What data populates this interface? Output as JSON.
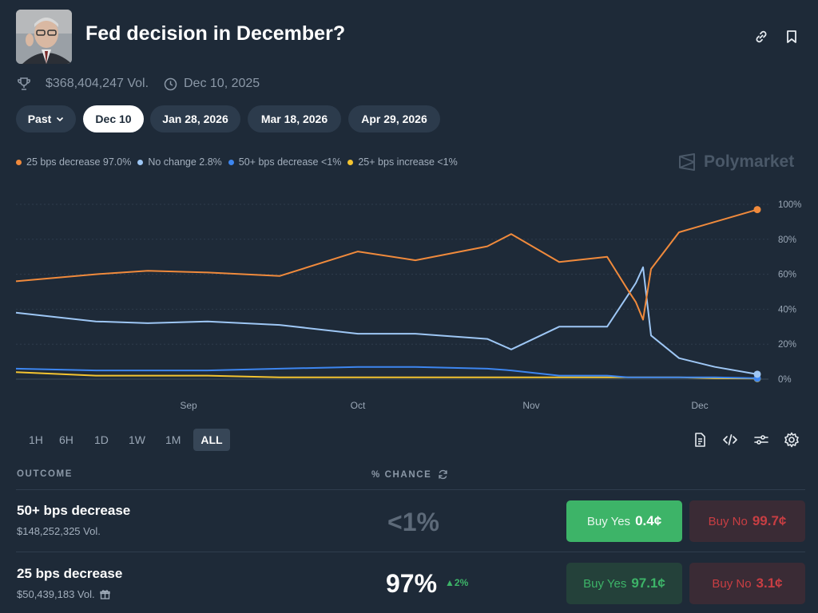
{
  "header": {
    "title": "Fed decision in December?",
    "volume": "$368,404,247 Vol.",
    "date": "Dec 10, 2025",
    "icons": [
      "link-icon",
      "bookmark-icon"
    ]
  },
  "date_tabs": {
    "past_label": "Past",
    "tabs": [
      "Dec 10",
      "Jan 28, 2026",
      "Mar 18, 2026",
      "Apr 29, 2026"
    ],
    "active": "Dec 10"
  },
  "legend": [
    {
      "label": "25 bps decrease 97.0%",
      "color": "#f08a3c"
    },
    {
      "label": "No change 2.8%",
      "color": "#9ec7f5"
    },
    {
      "label": "50+ bps decrease <1%",
      "color": "#3d86f0"
    },
    {
      "label": "25+ bps increase <1%",
      "color": "#f4c430"
    }
  ],
  "brand": "Polymarket",
  "chart_data": {
    "type": "line",
    "x_ticks": [
      "Sep",
      "Oct",
      "Nov",
      "Dec"
    ],
    "y_ticks": [
      "100%",
      "80%",
      "60%",
      "40%",
      "20%",
      "0%"
    ],
    "ylim": [
      0,
      100
    ],
    "grid": true,
    "legend_position": "top-left",
    "x": [
      "Aug 15",
      "Aug 25",
      "Sep 1",
      "Sep 10",
      "Sep 20",
      "Oct 1",
      "Oct 10",
      "Oct 20",
      "Oct 28",
      "Nov 5",
      "Nov 15",
      "Nov 20",
      "Nov 22",
      "Nov 24",
      "Nov 26",
      "Dec 1",
      "Dec 5",
      "Dec 10"
    ],
    "series": [
      {
        "name": "25 bps decrease",
        "color": "#f08a3c",
        "values": [
          56,
          60,
          62,
          61,
          59,
          73,
          68,
          76,
          83,
          67,
          70,
          51,
          44,
          34,
          63,
          84,
          90,
          97
        ]
      },
      {
        "name": "No change",
        "color": "#9ec7f5",
        "values": [
          38,
          33,
          32,
          33,
          31,
          26,
          26,
          23,
          17,
          30,
          30,
          48,
          55,
          64,
          25,
          12,
          7,
          2.8
        ]
      },
      {
        "name": "50+ bps decrease",
        "color": "#3d86f0",
        "values": [
          6,
          5,
          5,
          5,
          6,
          7,
          7,
          6,
          5,
          2,
          2,
          1,
          1,
          1,
          1,
          1,
          1,
          0.5
        ]
      },
      {
        "name": "25+ bps increase",
        "color": "#f4c430",
        "values": [
          4,
          2,
          2,
          2,
          1,
          1,
          1,
          1,
          1,
          1,
          1,
          1,
          1,
          1,
          1,
          1,
          0.5,
          0.3
        ]
      }
    ]
  },
  "ranges": [
    "1H",
    "6H",
    "1D",
    "1W",
    "1M",
    "ALL"
  ],
  "active_range": "ALL",
  "tools": [
    "document-icon",
    "embed-code-icon",
    "sliders-icon",
    "gear-icon"
  ],
  "table": {
    "outcome_header": "OUTCOME",
    "chance_header": "% CHANCE",
    "rows": [
      {
        "name": "50+ bps decrease",
        "volume": "$148,252,325 Vol.",
        "chance": "<1%",
        "delta": "",
        "yes_label": "Buy Yes",
        "yes_price": "0.4¢",
        "no_label": "Buy No",
        "no_price": "99.7¢"
      },
      {
        "name": "25 bps decrease",
        "volume": "$50,439,183 Vol.",
        "chance": "97%",
        "delta": "2%",
        "yes_label": "Buy Yes",
        "yes_price": "97.1¢",
        "no_label": "Buy No",
        "no_price": "3.1¢"
      }
    ]
  }
}
